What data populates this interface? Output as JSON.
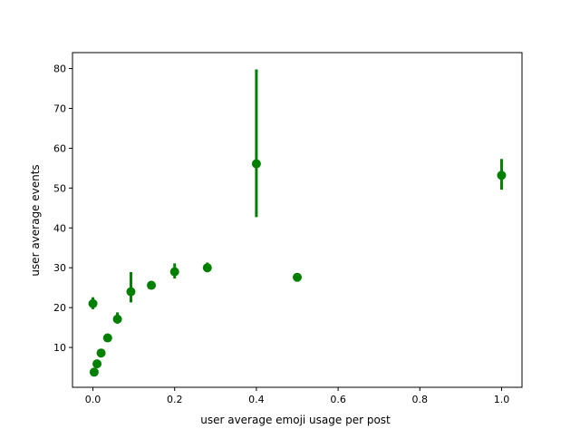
{
  "chart_data": {
    "type": "scatter",
    "title": "",
    "xlabel": "user average emoji usage per post",
    "ylabel": "user average events",
    "xlim": [
      -0.05,
      1.05
    ],
    "ylim": [
      0,
      84
    ],
    "x_ticks": [
      0.0,
      0.2,
      0.4,
      0.6,
      0.8,
      1.0
    ],
    "x_tick_labels": [
      "0.0",
      "0.2",
      "0.4",
      "0.6",
      "0.8",
      "1.0"
    ],
    "y_ticks": [
      10,
      20,
      30,
      40,
      50,
      60,
      70,
      80
    ],
    "y_tick_labels": [
      "10",
      "20",
      "30",
      "40",
      "50",
      "60",
      "70",
      "80"
    ],
    "grid": false,
    "legend": false,
    "color": "#008000",
    "series": [
      {
        "points": [
          {
            "x": 0.0,
            "y": 21.0,
            "lo": 19.6,
            "hi": 22.6
          },
          {
            "x": 0.003,
            "y": 3.8,
            "lo": 3.7,
            "hi": 3.9
          },
          {
            "x": 0.01,
            "y": 5.9,
            "lo": 5.7,
            "hi": 6.1
          },
          {
            "x": 0.02,
            "y": 8.6,
            "lo": 8.3,
            "hi": 8.9
          },
          {
            "x": 0.036,
            "y": 12.4,
            "lo": 12.0,
            "hi": 12.9
          },
          {
            "x": 0.06,
            "y": 17.1,
            "lo": 16.0,
            "hi": 18.8
          },
          {
            "x": 0.093,
            "y": 24.0,
            "lo": 21.3,
            "hi": 28.9
          },
          {
            "x": 0.143,
            "y": 25.6,
            "lo": 24.6,
            "hi": 26.6
          },
          {
            "x": 0.2,
            "y": 29.0,
            "lo": 27.3,
            "hi": 31.1
          },
          {
            "x": 0.28,
            "y": 30.0,
            "lo": 28.9,
            "hi": 31.3
          },
          {
            "x": 0.4,
            "y": 56.1,
            "lo": 42.7,
            "hi": 79.8
          },
          {
            "x": 0.5,
            "y": 27.6,
            "lo": 26.7,
            "hi": 28.6
          },
          {
            "x": 1.0,
            "y": 53.2,
            "lo": 49.6,
            "hi": 57.3
          }
        ]
      }
    ]
  }
}
